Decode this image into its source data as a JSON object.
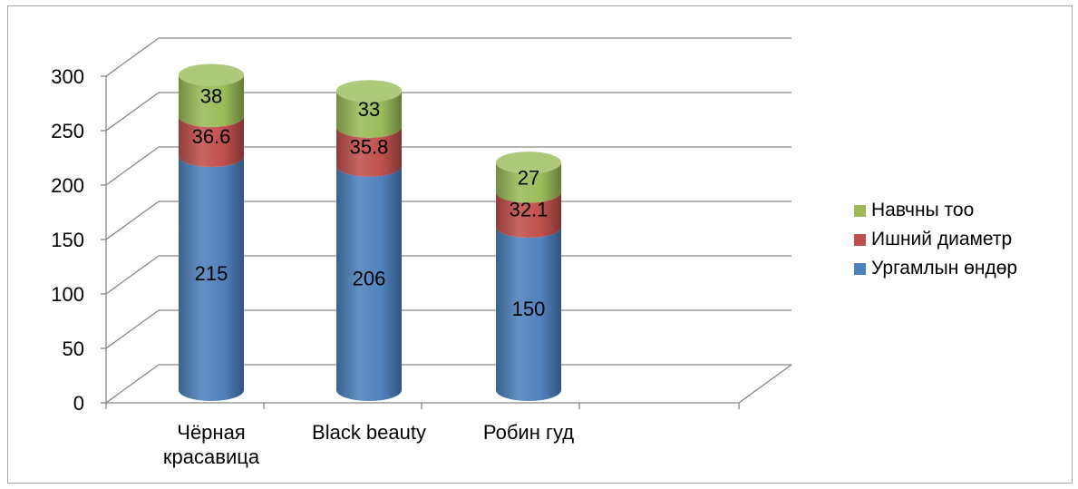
{
  "chart_data": {
    "type": "bar",
    "stacked": true,
    "style": "3d-cylinder",
    "categories": [
      "Чёрная красавица",
      "Black beauty",
      "Робин гуд"
    ],
    "category_label_lines": [
      [
        "Чёрная",
        "красавица"
      ],
      [
        "Black beauty"
      ],
      [
        "Робин гуд"
      ]
    ],
    "series": [
      {
        "name": "Ургамлын өндөр",
        "values": [
          215,
          206,
          150
        ],
        "color": "#4f81bd"
      },
      {
        "name": "Ишний диаметр",
        "values": [
          36.6,
          35.8,
          32.1
        ],
        "color": "#c0504d"
      },
      {
        "name": "Навчны тоо",
        "values": [
          38,
          33,
          27
        ],
        "color": "#9bbb59"
      }
    ],
    "ylim": [
      0,
      300
    ],
    "yticks": [
      0,
      50,
      100,
      150,
      200,
      250,
      300
    ],
    "grid": true,
    "legend_position": "right",
    "legend_order": [
      "Навчны тоо",
      "Ишний диаметр",
      "Ургамлын өндөр"
    ],
    "title": "",
    "xlabel": "",
    "ylabel": ""
  }
}
